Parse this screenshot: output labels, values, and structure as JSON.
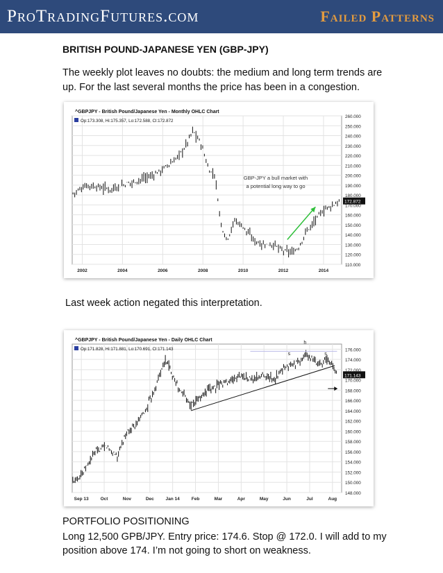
{
  "header": {
    "site": "ProTradingFutures.com",
    "section": "Failed Patterns"
  },
  "title": "BRITISH POUND-JAPANESE YEN (GBP-JPY)",
  "intro": "The weekly plot leaves no doubts: the medium and long term trends are up. For the last several months the price has been in a congestion.",
  "caption": "Last week action negated this interpretation.",
  "portfolio": {
    "heading": "PORTFOLIO POSITIONING",
    "text": "Long 12,500 GPB/JPY. Entry price: 174.6. Stop @ 172.0. I will add to my position above 174. I’m not going to short on weakness."
  },
  "chart_data": [
    {
      "type": "ohlc",
      "title": "^GBPJPY - British Pound/Japanese Yen - Monthly OHLC Chart",
      "legend": "Op:173.308, Hi:175.357, Lo:172.588, Cl:172.872",
      "annotation": "GBP-JPY a bull market with a potential long way to go",
      "last_price_label": "172.872",
      "y_ticks": [
        "260.000",
        "250.000",
        "240.000",
        "230.000",
        "220.000",
        "210.000",
        "200.000",
        "190.000",
        "180.000",
        "170.000",
        "160.000",
        "150.000",
        "140.000",
        "130.000",
        "120.000",
        "110.000"
      ],
      "x_ticks": [
        "2002",
        "2004",
        "2006",
        "2008",
        "2010",
        "2012",
        "2014"
      ],
      "ylim": [
        110,
        260
      ],
      "xlim": [
        2001.5,
        2014.9
      ],
      "close_path": [
        [
          2001.6,
          182
        ],
        [
          2002.2,
          190
        ],
        [
          2002.8,
          188
        ],
        [
          2003.4,
          186
        ],
        [
          2004.0,
          190
        ],
        [
          2004.8,
          195
        ],
        [
          2005.5,
          200
        ],
        [
          2006.0,
          206
        ],
        [
          2006.6,
          215
        ],
        [
          2007.1,
          228
        ],
        [
          2007.5,
          245
        ],
        [
          2007.9,
          232
        ],
        [
          2008.3,
          205
        ],
        [
          2008.6,
          200
        ],
        [
          2008.9,
          150
        ],
        [
          2009.2,
          135
        ],
        [
          2009.6,
          155
        ],
        [
          2010.0,
          148
        ],
        [
          2010.5,
          135
        ],
        [
          2011.0,
          130
        ],
        [
          2011.5,
          130
        ],
        [
          2012.0,
          123
        ],
        [
          2012.5,
          122
        ],
        [
          2012.8,
          128
        ],
        [
          2013.1,
          142
        ],
        [
          2013.5,
          152
        ],
        [
          2014.0,
          165
        ],
        [
          2014.5,
          170
        ],
        [
          2014.8,
          174
        ]
      ],
      "arrow_path": [
        [
          2012.2,
          135
        ],
        [
          2013.6,
          168
        ]
      ],
      "grid": true
    },
    {
      "type": "ohlc",
      "title": "^GBPJPY - British Pound/Japanese Yen - Daily OHLC Chart",
      "legend": "Op:171.828, Hi:171.881, Lo:170.691, Cl:171.143",
      "last_price_label": "171.143",
      "pattern_labels": [
        "h",
        "s",
        "s"
      ],
      "y_ticks": [
        "176.000",
        "174.000",
        "172.000",
        "170.000",
        "168.000",
        "166.000",
        "164.000",
        "162.000",
        "160.000",
        "158.000",
        "156.000",
        "154.000",
        "152.000",
        "150.000",
        "148.000"
      ],
      "x_ticks": [
        "Sep 13",
        "Oct",
        "Nov",
        "Dec",
        "Jan 14",
        "Feb",
        "Mar",
        "Apr",
        "May",
        "Jun",
        "Jul",
        "Aug"
      ],
      "ylim": [
        148,
        177
      ],
      "xlim": [
        0,
        11.8
      ],
      "close_path": [
        [
          0,
          150
        ],
        [
          0.5,
          152
        ],
        [
          1,
          156
        ],
        [
          1.5,
          157
        ],
        [
          2,
          155
        ],
        [
          2.4,
          160
        ],
        [
          2.8,
          161
        ],
        [
          3.2,
          164
        ],
        [
          3.6,
          168
        ],
        [
          3.9,
          172
        ],
        [
          4.1,
          174
        ],
        [
          4.4,
          171
        ],
        [
          4.7,
          168
        ],
        [
          4.9,
          167
        ],
        [
          5.2,
          165
        ],
        [
          5.5,
          166
        ],
        [
          5.9,
          168
        ],
        [
          6.4,
          169
        ],
        [
          7,
          170
        ],
        [
          7.4,
          171
        ],
        [
          7.9,
          170
        ],
        [
          8.4,
          171
        ],
        [
          8.8,
          170
        ],
        [
          9.2,
          172
        ],
        [
          9.6,
          173
        ],
        [
          10,
          173.5
        ],
        [
          10.2,
          175
        ],
        [
          10.5,
          174
        ],
        [
          10.8,
          173
        ],
        [
          11.1,
          174
        ],
        [
          11.4,
          173
        ],
        [
          11.6,
          171
        ]
      ],
      "trendline": [
        [
          5.2,
          164
        ],
        [
          11.5,
          172.8
        ]
      ],
      "neckline": [
        [
          7.8,
          175.6
        ],
        [
          11.6,
          175.6
        ]
      ],
      "grid": true
    }
  ]
}
